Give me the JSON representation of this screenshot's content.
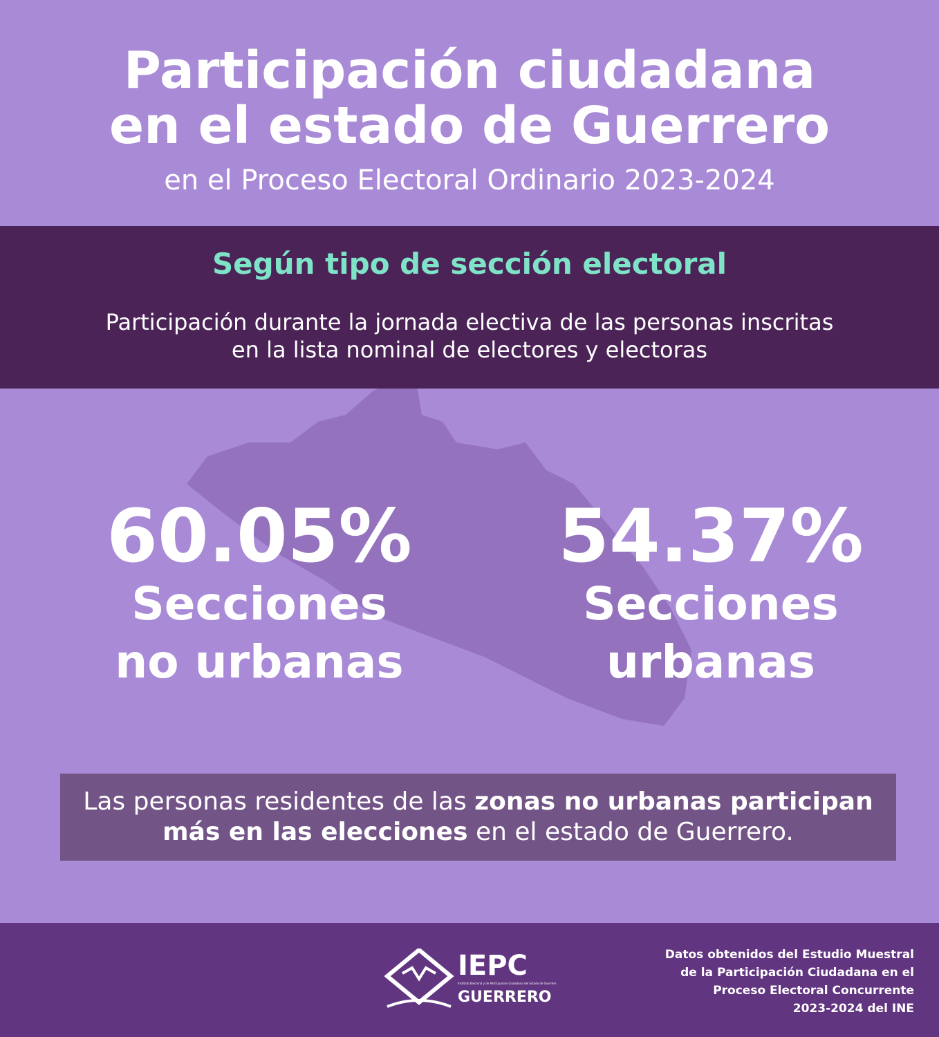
{
  "header": {
    "title_lines": [
      "Participación ciudadana",
      "en el estado de Guerrero"
    ],
    "subtitle": "en el Proceso Electoral Ordinario 2023-2024"
  },
  "band": {
    "heading": "Según tipo de sección electoral",
    "text_lines": [
      "Participación durante la jornada electiva de las personas inscritas",
      "en la lista nominal de electores y electoras"
    ]
  },
  "stats": [
    {
      "value": "60.05%",
      "label_lines": [
        "Secciones",
        "no urbanas"
      ]
    },
    {
      "value": "54.37%",
      "label_lines": [
        "Secciones",
        "urbanas"
      ]
    }
  ],
  "note": {
    "segments": [
      {
        "text": "Las personas residentes de las ",
        "bold": false
      },
      {
        "text": "zonas no urbanas participan más en las elecciones",
        "bold": true
      },
      {
        "text": " en el estado de Guerrero.",
        "bold": false
      }
    ]
  },
  "footer": {
    "logo": {
      "name": "IEPC",
      "state": "GUERRERO",
      "full_name": "Instituto Electoral y de Participación Ciudadana del Estado de Guerrero"
    },
    "source_lines": [
      "Datos obtenidos del Estudio Muestral",
      "de la Participación Ciudadana en el",
      "Proceso Electoral Concurrente",
      "2023-2024 del INE"
    ]
  }
}
